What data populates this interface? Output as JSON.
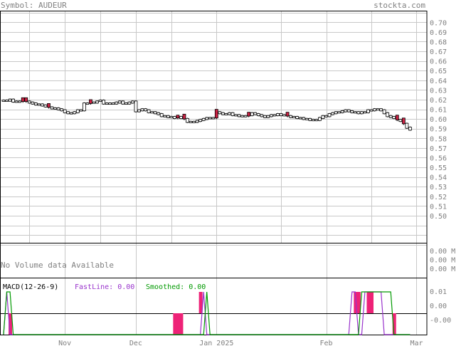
{
  "header": {
    "symbol_label": "Symbol: AUDEUR",
    "site": "stockta.com"
  },
  "colors": {
    "grid": "#c8c8c8",
    "axis_text": "#808080",
    "label_gray": "#808080",
    "up_candle": "#ffffff",
    "down_candle": "#cc2244",
    "outline": "#000000",
    "fast_line": "#9933cc",
    "smoothed_line": "#009900",
    "histogram": "#ee2277",
    "volume_note": "#808080"
  },
  "chart_data": [
    {
      "type": "candlestick",
      "title": "Symbol: AUDEUR",
      "x_tick_labels": [
        "Nov",
        "Dec",
        "Jan 2025",
        "Feb",
        "Mar"
      ],
      "y_tick_labels": [
        "0.70",
        "0.69",
        "0.68",
        "0.67",
        "0.66",
        "0.65",
        "0.64",
        "0.63",
        "0.62",
        "0.61",
        "0.60",
        "0.59",
        "0.58",
        "0.57",
        "0.56",
        "0.55",
        "0.54",
        "0.53",
        "0.52",
        "0.51",
        "0.50"
      ],
      "ylim": [
        0.472,
        0.712
      ],
      "grid": true,
      "segment_break_after_index": 29,
      "month_starts": [
        {
          "label": "Nov",
          "index": 19
        },
        {
          "label": "Dec",
          "index": 41
        },
        {
          "label": "Jan 2025",
          "index": 66
        },
        {
          "label": "Feb",
          "index": 100
        },
        {
          "label": "Mar",
          "index": 128
        }
      ],
      "close": [
        0.619,
        0.619,
        0.62,
        0.618,
        0.618,
        0.618,
        0.619,
        0.618,
        0.617,
        0.616,
        0.615,
        0.615,
        0.614,
        0.613,
        0.612,
        0.611,
        0.611,
        0.61,
        0.609,
        0.607,
        0.606,
        0.606,
        0.607,
        0.609,
        0.609,
        0.616,
        0.616,
        0.617,
        0.617,
        0.618,
        0.619,
        0.616,
        0.616,
        0.616,
        0.616,
        0.617,
        0.618,
        0.616,
        0.616,
        0.617,
        0.618,
        0.608,
        0.609,
        0.61,
        0.609,
        0.607,
        0.607,
        0.606,
        0.605,
        0.603,
        0.603,
        0.602,
        0.602,
        0.601,
        0.601,
        0.602,
        0.6,
        0.597,
        0.597,
        0.597,
        0.598,
        0.599,
        0.6,
        0.601,
        0.601,
        0.601,
        0.607,
        0.606,
        0.605,
        0.605,
        0.606,
        0.604,
        0.604,
        0.603,
        0.603,
        0.603,
        0.604,
        0.606,
        0.605,
        0.604,
        0.603,
        0.602,
        0.603,
        0.604,
        0.604,
        0.605,
        0.604,
        0.604,
        0.603,
        0.602,
        0.602,
        0.601,
        0.601,
        0.6,
        0.6,
        0.599,
        0.599,
        0.599,
        0.601,
        0.603,
        0.603,
        0.605,
        0.606,
        0.607,
        0.607,
        0.608,
        0.609,
        0.608,
        0.607,
        0.607,
        0.606,
        0.607,
        0.607,
        0.609,
        0.609,
        0.61,
        0.61,
        0.609,
        0.606,
        0.603,
        0.602,
        0.601,
        0.599,
        0.598,
        0.595,
        0.591,
        0.589
      ],
      "down_candle_indices": [
        6,
        7,
        14,
        27,
        54,
        56,
        66,
        76,
        88,
        122,
        124
      ],
      "volume": {
        "note": "No Volume data Available",
        "y_tick_labels": [
          "0.00 M",
          "0.00 M",
          "0.00 M"
        ]
      },
      "macd": {
        "label": "MACD(12-26-9)",
        "fast_label": "FastLine: 0.00",
        "smoothed_label": "Smoothed: 0.00",
        "y_tick_labels": [
          "0.01",
          "0.00",
          "-0.00"
        ],
        "histogram_up_indices": [
          61,
          109,
          110,
          113,
          114
        ],
        "histogram_down_indices": [
          2,
          53,
          54,
          55,
          121
        ],
        "fast_line_high_indices": [
          1,
          62,
          108,
          109,
          112,
          113,
          114,
          115,
          116,
          117
        ],
        "smoothed_line_high_indices": [
          1,
          2,
          63,
          111,
          112,
          113,
          114,
          115,
          116,
          117,
          118,
          119,
          120
        ]
      }
    }
  ]
}
